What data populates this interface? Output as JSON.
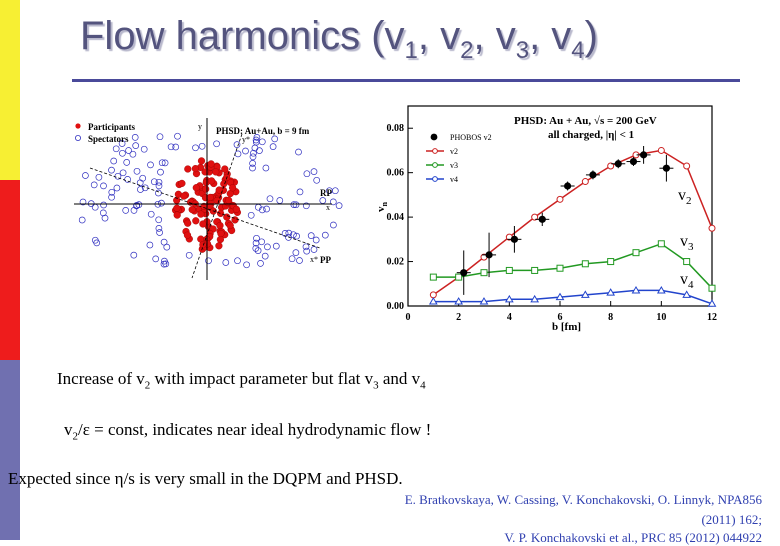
{
  "slide": {
    "title_main": "Flow harmonics (v",
    "title_sub1": "1",
    "title_sep1": ", v",
    "title_sub2": "2",
    "title_sep2": ", v",
    "title_sub3": "3",
    "title_sep3": ", v",
    "title_sub4": "4",
    "title_end": ")",
    "colors": {
      "yellow": "#f7ef33",
      "red": "#ee1c1c",
      "blue": "#7070b0",
      "title": "#54547e",
      "rule": "#4a4a9a",
      "ref": "#3040b0"
    }
  },
  "collision": {
    "legend_participants": "Participants",
    "legend_spectators": "Spectators",
    "label": "PHSD: Au+Au, b = 9 fm",
    "axis_y": "y",
    "axis_ystar": "y*",
    "axis_x": "x",
    "axis_xstar": "x*",
    "rp": "RP",
    "pp": "PP"
  },
  "chart_data": {
    "type": "line",
    "title": "PHSD: Au + Au, √s = 200 GeV",
    "subtitle": "all charged, |η| < 1",
    "xlabel": "b [fm]",
    "ylabel": "v",
    "ylabel_sub": "n",
    "xlim": [
      0,
      12
    ],
    "ylim": [
      0,
      0.09
    ],
    "x_ticks": [
      "0",
      "2",
      "4",
      "6",
      "8",
      "10",
      "12"
    ],
    "y_ticks": [
      "0.00",
      "0.02",
      "0.04",
      "0.06",
      "0.08"
    ],
    "legend": [
      "PHOBOS v2",
      "v2",
      "v3",
      "v4"
    ],
    "curve_labels": [
      "v",
      "v",
      "v"
    ],
    "curve_label_subs": [
      "2",
      "3",
      "4"
    ],
    "series": [
      {
        "name": "PHOBOS v2",
        "color": "#000000",
        "x": [
          2.2,
          3.2,
          4.2,
          5.3,
          6.3,
          7.3,
          8.3,
          8.9,
          9.3,
          10.2
        ],
        "y": [
          0.015,
          0.023,
          0.03,
          0.039,
          0.054,
          0.059,
          0.064,
          0.065,
          0.068,
          0.062
        ],
        "err": [
          0.01,
          0.01,
          0.006,
          0.003,
          0.002,
          0.002,
          0.002,
          0.002,
          0.004,
          0.006
        ]
      },
      {
        "name": "v2",
        "color": "#cc2222",
        "x": [
          1,
          2,
          3,
          4,
          5,
          6,
          7,
          8,
          9,
          10,
          11,
          12
        ],
        "y": [
          0.005,
          0.013,
          0.022,
          0.031,
          0.04,
          0.048,
          0.056,
          0.063,
          0.068,
          0.07,
          0.063,
          0.035
        ]
      },
      {
        "name": "v3",
        "color": "#229922",
        "x": [
          1,
          2,
          3,
          4,
          5,
          6,
          7,
          8,
          9,
          10,
          11,
          12
        ],
        "y": [
          0.013,
          0.013,
          0.015,
          0.016,
          0.016,
          0.017,
          0.019,
          0.02,
          0.024,
          0.028,
          0.02,
          0.008
        ]
      },
      {
        "name": "v4",
        "color": "#2244cc",
        "x": [
          1,
          2,
          3,
          4,
          5,
          6,
          7,
          8,
          9,
          10,
          11,
          12
        ],
        "y": [
          0.002,
          0.002,
          0.002,
          0.003,
          0.003,
          0.004,
          0.005,
          0.006,
          0.007,
          0.007,
          0.005,
          0.001
        ]
      }
    ]
  },
  "text": {
    "line1_a": "Increase of v",
    "line1_sub1": "2",
    "line1_b": " with impact parameter but flat v",
    "line1_sub2": "3",
    "line1_c": " and v",
    "line1_sub3": "4",
    "line2_a": "v",
    "line2_sub": "2",
    "line2_b": "/ε = const, indicates near ideal hydrodynamic flow !",
    "line3": "Expected since η/s is very small in the DQPM and PHSD.",
    "ref1": "E. Bratkovskaya, W. Cassing, V. Konchakovski, O. Linnyk, NPA856",
    "ref2": "(2011) 162;",
    "ref3": "V. P. Konchakovski et al., PRC 85 (2012) 044922"
  }
}
